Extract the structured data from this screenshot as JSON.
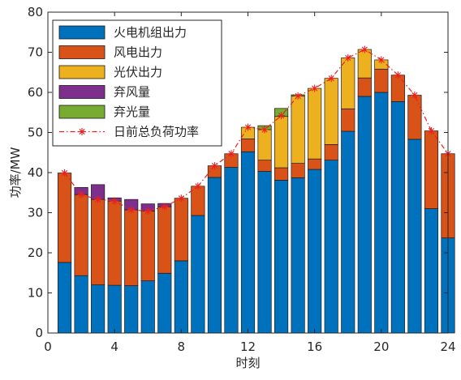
{
  "chart_data": {
    "type": "bar",
    "stacked": true,
    "xlabel": "时刻",
    "ylabel": "功率/MW",
    "xlim": [
      0,
      24
    ],
    "ylim": [
      0,
      80
    ],
    "xticks": [
      0,
      4,
      8,
      12,
      16,
      20,
      24
    ],
    "yticks": [
      0,
      10,
      20,
      30,
      40,
      50,
      60,
      70,
      80
    ],
    "grid": false,
    "legend_position": "top-left",
    "x": [
      1,
      2,
      3,
      4,
      5,
      6,
      7,
      8,
      9,
      10,
      11,
      12,
      13,
      14,
      15,
      16,
      17,
      18,
      19,
      20,
      21,
      22,
      23,
      24
    ],
    "series": [
      {
        "name": "火电机组出力",
        "color": "#0072BD",
        "values": [
          17.6,
          14.3,
          12.0,
          11.9,
          11.8,
          13.0,
          14.9,
          18.0,
          29.3,
          38.8,
          41.3,
          45.2,
          40.3,
          38.1,
          38.7,
          40.8,
          43.1,
          50.3,
          59.0,
          60.0,
          57.7,
          48.3,
          31.0,
          23.7
        ]
      },
      {
        "name": "风电出力",
        "color": "#D95319",
        "values": [
          22.3,
          20.2,
          21.3,
          21.0,
          18.9,
          17.4,
          16.6,
          15.6,
          7.3,
          2.9,
          3.4,
          3.2,
          2.8,
          3.1,
          3.6,
          2.6,
          3.9,
          5.6,
          4.6,
          5.8,
          6.6,
          11.0,
          19.4,
          21.0
        ]
      },
      {
        "name": "光伏出力",
        "color": "#EDB120",
        "values": [
          0,
          0,
          0,
          0,
          0,
          0,
          0,
          0,
          0,
          0,
          0,
          2.9,
          7.6,
          12.8,
          16.8,
          17.6,
          16.5,
          12.7,
          7.1,
          2.3,
          0,
          0,
          0,
          0
        ]
      },
      {
        "name": "弃风量",
        "color": "#7E2F8E",
        "values": [
          0,
          1.8,
          3.7,
          0.8,
          2.6,
          1.8,
          0.8,
          0,
          0,
          0,
          0,
          0,
          0,
          0,
          0,
          0,
          0,
          0,
          0,
          0,
          0,
          0,
          0,
          0
        ]
      },
      {
        "name": "弃光量",
        "color": "#77AC30",
        "values": [
          0,
          0,
          0,
          0,
          0,
          0,
          0,
          0,
          0,
          0,
          0,
          0,
          1.0,
          2.0,
          0.3,
          0,
          0,
          0,
          0,
          0,
          0,
          0,
          0,
          0
        ]
      }
    ],
    "load_line": {
      "name": "日前总负荷功率",
      "color": "#E8211E",
      "values": [
        39.9,
        34.5,
        33.3,
        32.9,
        30.7,
        30.4,
        31.5,
        33.6,
        36.6,
        41.7,
        44.7,
        51.3,
        50.7,
        54.2,
        59.1,
        61.0,
        63.5,
        68.6,
        70.7,
        68.1,
        64.3,
        59.3,
        50.4,
        44.7
      ]
    }
  }
}
